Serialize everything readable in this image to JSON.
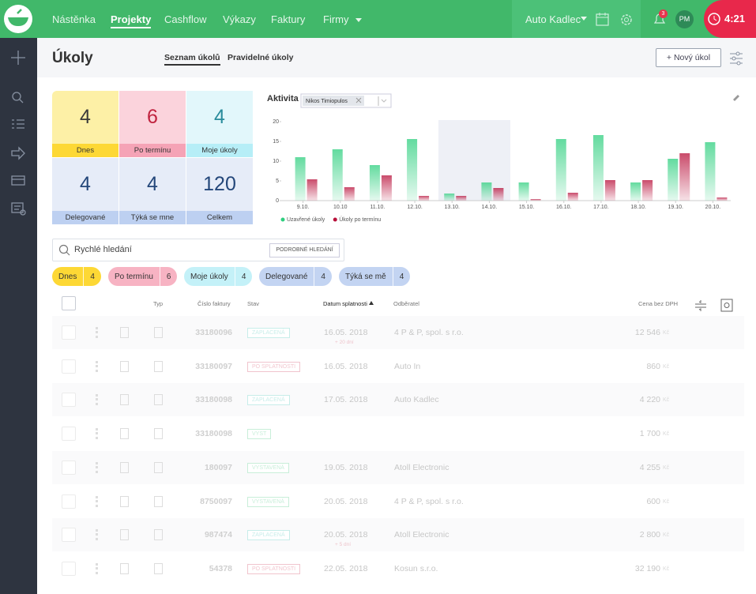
{
  "nav": {
    "items": [
      "Nástěnka",
      "Projekty",
      "Cashflow",
      "Výkazy",
      "Faktury",
      "Firmy"
    ],
    "active": "Projekty",
    "company": "Auto Kadlec",
    "notifications": "3",
    "user": "PM",
    "timer": "4:21"
  },
  "header": {
    "title": "Úkoly",
    "tabs": [
      "Seznam úkolů",
      "Pravidelné úkoly"
    ],
    "active_tab": "Seznam úkolů",
    "button": "+ Nový úkol"
  },
  "tiles": [
    {
      "value": 4,
      "label": "Dnes",
      "bg": "#fdf0a6",
      "bar": "#fdd835",
      "color": "#3a3a3a"
    },
    {
      "value": 6,
      "label": "Po termínu",
      "bg": "#fbd3dc",
      "bar": "#f5a3b6",
      "color": "#c0233f"
    },
    {
      "value": 4,
      "label": "Moje úkoly",
      "bg": "#e2f7fb",
      "bar": "#b6eef7",
      "color": "#2a8c9c"
    },
    {
      "value": 4,
      "label": "Delegované",
      "bg": "#e6ecf8",
      "bar": "#bdd0f1",
      "color": "#24477a"
    },
    {
      "value": 4,
      "label": "Týká se mne",
      "bg": "#e6ecf8",
      "bar": "#bdd0f1",
      "color": "#24477a"
    },
    {
      "value": 120,
      "label": "Celkem",
      "bg": "#e6ecf8",
      "bar": "#bdd0f1",
      "color": "#24477a"
    }
  ],
  "chart_data": {
    "type": "bar",
    "title": "Aktivita",
    "filter": "Nikos Timiopulos",
    "categories": [
      "9.10.",
      "10.10",
      "11.10.",
      "12.10.",
      "13.10.",
      "14.10.",
      "15.10.",
      "16.10.",
      "17.10.",
      "18.10.",
      "19.10.",
      "20.10."
    ],
    "series": [
      {
        "name": "Uzavřené úkoly",
        "color": "#2fcf7f",
        "values": [
          11,
          13,
          9,
          15.6,
          1.8,
          4.6,
          4.6,
          15.6,
          16.6,
          4.6,
          10.6,
          14.8
        ]
      },
      {
        "name": "Úkoly po termínu",
        "color": "#b8103a",
        "values": [
          5.4,
          3.4,
          6.4,
          1.2,
          1.2,
          3.2,
          0.4,
          2,
          5.2,
          5.2,
          12,
          0.8
        ]
      }
    ],
    "ylim": [
      0,
      20
    ],
    "yticks": [
      0,
      5,
      10,
      15,
      20
    ]
  },
  "search": {
    "placeholder": "Rychlé hledání",
    "button": "PODROBNÉ HLEDÁNÍ"
  },
  "chips": [
    {
      "label": "Dnes",
      "count": 4,
      "color": "#fdd835"
    },
    {
      "label": "Po termínu",
      "count": 6,
      "color": "#f7b3c3"
    },
    {
      "label": "Moje úkoly",
      "count": 4,
      "color": "#c4f1f8"
    },
    {
      "label": "Delegované",
      "count": 4,
      "color": "#c3d4f2"
    },
    {
      "label": "Týká se mě",
      "count": 4,
      "color": "#c3d4f2"
    }
  ],
  "table": {
    "columns": [
      "Typ",
      "Číslo faktury",
      "Stav",
      "Datum splatnosti",
      "Odběratel",
      "Cena bez DPH"
    ],
    "rows": [
      {
        "number": "33180096",
        "status": "ZAPLACENÁ",
        "status_color": "#3bbfb3",
        "date": "16.05. 2018",
        "note": "+ 20 dní",
        "customer": "4 P & P, spol. s r.o.",
        "amount": "12 546",
        "currency": "Kč"
      },
      {
        "number": "33180097",
        "status": "PO SPLATNOSTI",
        "status_color": "#d0304f",
        "date": "16.05. 2018",
        "customer": "Auto In",
        "amount": "860",
        "currency": "Kč"
      },
      {
        "number": "33180098",
        "status": "ZAPLACENÁ",
        "status_color": "#3bbfb3",
        "date": "17.05. 2018",
        "customer": "Auto Kadlec",
        "amount": "4 220",
        "currency": "Kč"
      },
      {
        "number": "33180098",
        "status": "VYST",
        "status_color": "#3cc47a",
        "amount": "1 700",
        "currency": "Kč"
      },
      {
        "number": "180097",
        "status": "VYSTAVENÁ",
        "status_color": "#3cc47a",
        "date": "19.05. 2018",
        "customer": "Atoll Electronic",
        "amount": "4 255",
        "currency": "Kč"
      },
      {
        "number": "8750097",
        "status": "VYSTAVENÁ",
        "status_color": "#3cc47a",
        "date": "20.05. 2018",
        "customer": "4 P & P, spol. s r.o.",
        "amount": "600",
        "currency": "Kč"
      },
      {
        "number": "987474",
        "status": "ZAPLACENÁ",
        "status_color": "#3bbfb3",
        "date": "20.05. 2018",
        "note": "+ 5 dní",
        "customer": "Atoll Electronic",
        "amount": "2 800",
        "currency": "Kč"
      },
      {
        "number": "54378",
        "status": "PO SPLATNOSTI",
        "status_color": "#d0304f",
        "date": "22.05. 2018",
        "customer": "Kosun s.r.o.",
        "amount": "32 190",
        "currency": "Kč"
      }
    ]
  }
}
